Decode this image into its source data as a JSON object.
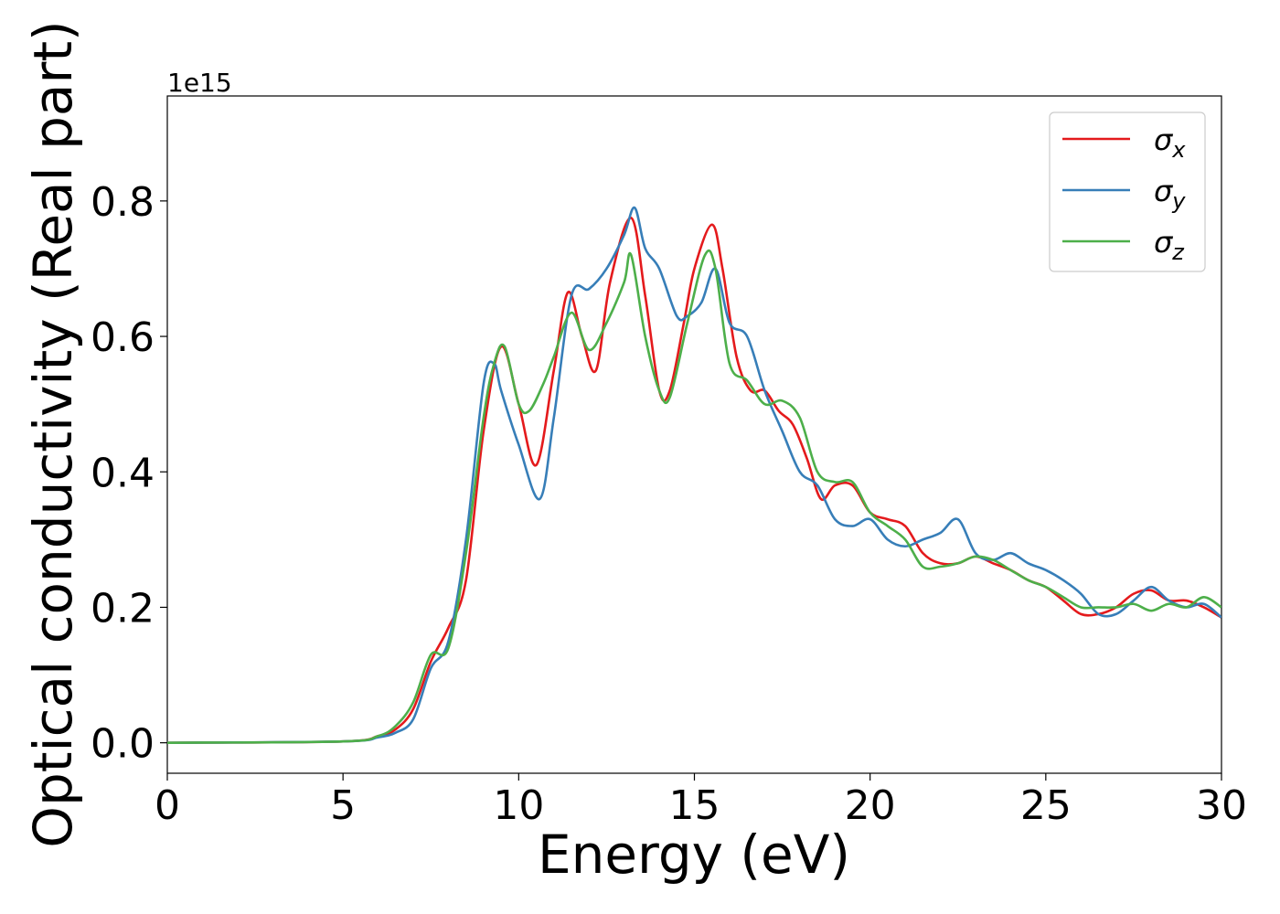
{
  "chart_data": {
    "type": "line",
    "title": "",
    "xlabel": "Energy (eV)",
    "ylabel": "Optical conductivity (Real part)",
    "y_offset_label": "1e15",
    "y_scale_factor": 1000000000000000.0,
    "xlim": [
      0,
      30
    ],
    "ylim": [
      -0.045,
      0.955
    ],
    "xticks": [
      0,
      5,
      10,
      15,
      20,
      25,
      30
    ],
    "xtick_labels": [
      "0",
      "5",
      "10",
      "15",
      "20",
      "25",
      "30"
    ],
    "yticks": [
      0.0,
      0.2,
      0.4,
      0.6,
      0.8
    ],
    "ytick_labels": [
      "0.0",
      "0.2",
      "0.4",
      "0.6",
      "0.8"
    ],
    "grid": false,
    "legend_position": "top-right",
    "series": [
      {
        "name": "σ_x",
        "sym": "σ",
        "sub": "x",
        "color": "#e41a1c",
        "x": [
          0,
          5,
          6,
          6.5,
          7,
          7.5,
          8,
          8.5,
          9,
          9.5,
          10,
          10.5,
          11,
          11.4,
          11.8,
          12.2,
          12.6,
          13.2,
          13.6,
          14,
          14.3,
          14.7,
          15,
          15.5,
          15.8,
          16.2,
          16.6,
          17,
          17.4,
          17.8,
          18.2,
          18.6,
          19,
          19.5,
          20,
          20.5,
          21,
          21.5,
          22,
          22.5,
          23,
          23.5,
          24,
          24.5,
          25,
          25.5,
          26,
          26.5,
          27,
          27.5,
          28,
          28.5,
          29,
          29.5,
          30
        ],
        "y": [
          0,
          0.002,
          0.01,
          0.02,
          0.05,
          0.12,
          0.17,
          0.24,
          0.46,
          0.585,
          0.5,
          0.41,
          0.55,
          0.665,
          0.6,
          0.55,
          0.68,
          0.775,
          0.66,
          0.52,
          0.52,
          0.62,
          0.7,
          0.765,
          0.7,
          0.57,
          0.52,
          0.52,
          0.49,
          0.47,
          0.42,
          0.36,
          0.38,
          0.38,
          0.34,
          0.33,
          0.32,
          0.28,
          0.265,
          0.265,
          0.275,
          0.265,
          0.255,
          0.24,
          0.23,
          0.21,
          0.19,
          0.19,
          0.2,
          0.22,
          0.225,
          0.21,
          0.21,
          0.2,
          0.185
        ]
      },
      {
        "name": "σ_y",
        "sym": "σ",
        "sub": "y",
        "color": "#377eb8",
        "x": [
          0,
          5,
          6,
          6.5,
          7,
          7.5,
          8,
          8.5,
          9,
          9.3,
          9.5,
          10,
          10.6,
          11,
          11.5,
          12,
          12.5,
          13,
          13.3,
          13.6,
          14,
          14.5,
          14.8,
          15.2,
          15.6,
          16,
          16.5,
          17,
          17.5,
          18,
          18.5,
          19,
          19.5,
          20,
          20.5,
          21,
          21.5,
          22,
          22.5,
          23,
          23.5,
          24,
          24.5,
          25,
          25.5,
          26,
          26.5,
          27,
          27.5,
          28,
          28.5,
          29,
          29.5,
          30
        ],
        "y": [
          0,
          0.002,
          0.008,
          0.015,
          0.035,
          0.11,
          0.15,
          0.3,
          0.53,
          0.56,
          0.52,
          0.44,
          0.36,
          0.48,
          0.66,
          0.67,
          0.7,
          0.75,
          0.79,
          0.73,
          0.7,
          0.63,
          0.63,
          0.65,
          0.7,
          0.62,
          0.6,
          0.52,
          0.46,
          0.4,
          0.38,
          0.33,
          0.32,
          0.33,
          0.3,
          0.29,
          0.3,
          0.31,
          0.33,
          0.28,
          0.27,
          0.28,
          0.265,
          0.255,
          0.24,
          0.22,
          0.19,
          0.19,
          0.21,
          0.23,
          0.21,
          0.2,
          0.205,
          0.185
        ]
      },
      {
        "name": "σ_z",
        "sym": "σ",
        "sub": "z",
        "color": "#4daf4a",
        "x": [
          0,
          5,
          6,
          6.5,
          7,
          7.5,
          8,
          8.5,
          9,
          9.3,
          9.6,
          10,
          10.3,
          10.7,
          11,
          11.5,
          12,
          12.5,
          13,
          13.2,
          13.6,
          14,
          14.3,
          14.8,
          15.3,
          15.6,
          16,
          16.5,
          17,
          17.5,
          18,
          18.5,
          19,
          19.5,
          20,
          20.5,
          21,
          21.5,
          22,
          22.5,
          23,
          23.5,
          24,
          24.5,
          25,
          25.5,
          26,
          26.5,
          27,
          27.5,
          28,
          28.5,
          29,
          29.5,
          30
        ],
        "y": [
          0,
          0.002,
          0.01,
          0.025,
          0.06,
          0.13,
          0.14,
          0.28,
          0.48,
          0.56,
          0.585,
          0.5,
          0.49,
          0.53,
          0.57,
          0.635,
          0.58,
          0.62,
          0.68,
          0.72,
          0.6,
          0.52,
          0.51,
          0.62,
          0.72,
          0.7,
          0.56,
          0.535,
          0.5,
          0.505,
          0.48,
          0.4,
          0.385,
          0.385,
          0.34,
          0.32,
          0.3,
          0.26,
          0.26,
          0.265,
          0.275,
          0.27,
          0.255,
          0.24,
          0.23,
          0.215,
          0.2,
          0.2,
          0.2,
          0.205,
          0.195,
          0.205,
          0.2,
          0.215,
          0.2
        ]
      }
    ]
  }
}
